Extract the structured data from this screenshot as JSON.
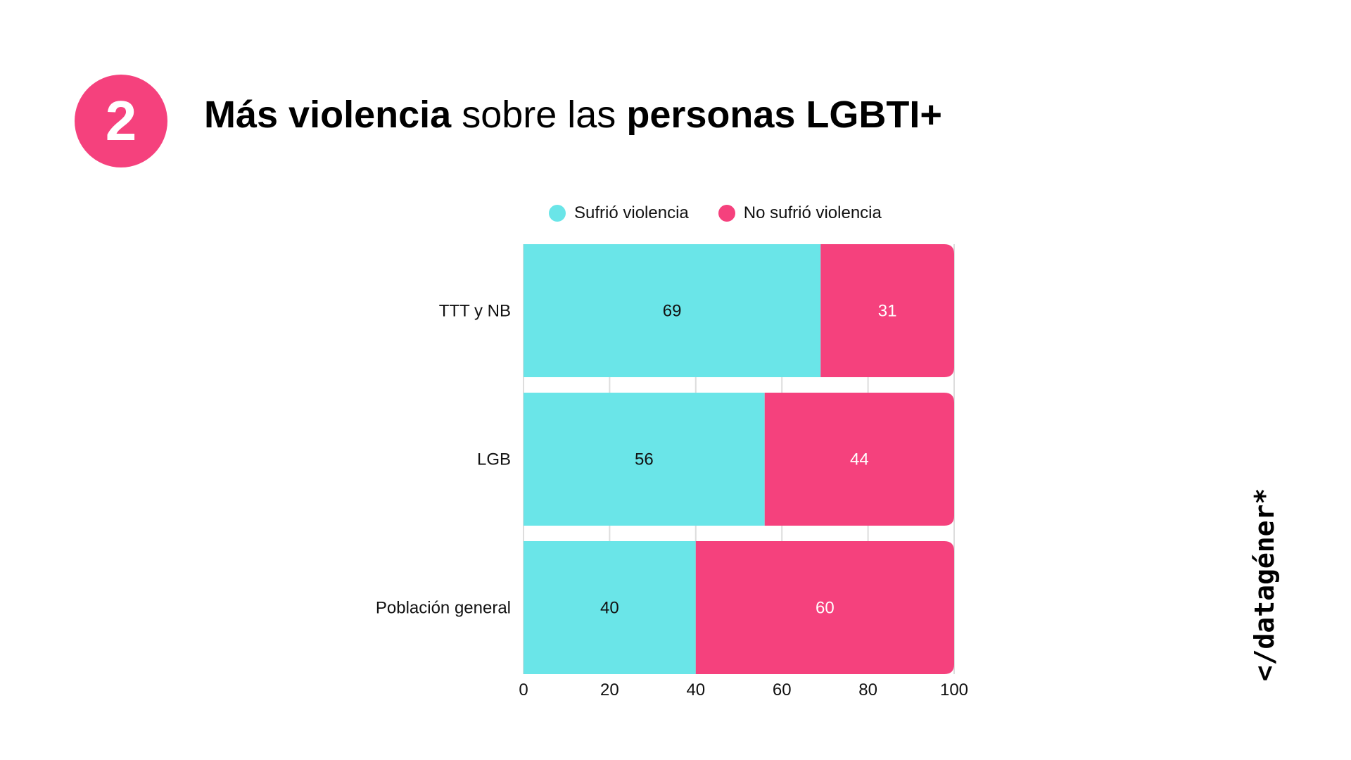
{
  "badge": {
    "number": "2"
  },
  "title": {
    "part1": "Más violencia",
    "part2": "sobre las",
    "part3": "personas LGBTI+"
  },
  "logo": {
    "text": "</datagéner*"
  },
  "colors": {
    "sufrio": "#6AE5E8",
    "no_sufrio": "#F5417D",
    "grid": "#dddddd"
  },
  "chart_data": {
    "type": "bar",
    "orientation": "horizontal",
    "stacked": true,
    "title": "Más violencia sobre las personas LGBTI+",
    "categories": [
      "TTT y NB",
      "LGB",
      "Población general"
    ],
    "series": [
      {
        "name": "Sufrió violencia",
        "values": [
          69,
          56,
          40
        ],
        "color": "#6AE5E8"
      },
      {
        "name": "No sufrió violencia",
        "values": [
          31,
          44,
          60
        ],
        "color": "#F5417D"
      }
    ],
    "xlim": [
      0,
      100
    ],
    "xticks": [
      "0",
      "20",
      "40",
      "60",
      "80",
      "100"
    ],
    "xlabel": "",
    "ylabel": "",
    "grid": true,
    "legend": "top"
  }
}
